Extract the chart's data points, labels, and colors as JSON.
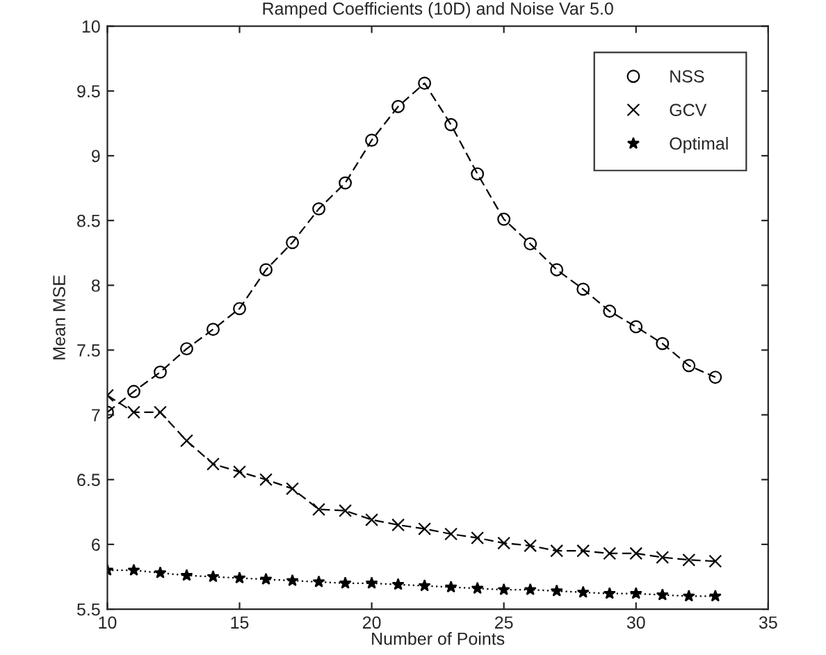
{
  "chart_data": {
    "type": "line",
    "title": "Ramped Coefficients (10D) and Noise Var 5.0",
    "xlabel": "Number of Points",
    "ylabel": "Mean MSE",
    "x": [
      10,
      11,
      12,
      13,
      14,
      15,
      16,
      17,
      18,
      19,
      20,
      21,
      22,
      23,
      24,
      25,
      26,
      27,
      28,
      29,
      30,
      31,
      32,
      33
    ],
    "series": [
      {
        "name": "NSS",
        "color": "#000000",
        "marker": "circle",
        "line_style": "dashed",
        "values": [
          7.02,
          7.18,
          7.33,
          7.51,
          7.66,
          7.82,
          8.12,
          8.33,
          8.59,
          8.79,
          9.12,
          9.38,
          9.56,
          9.24,
          8.86,
          8.51,
          8.32,
          8.12,
          7.97,
          7.8,
          7.68,
          7.55,
          7.38,
          7.29
        ]
      },
      {
        "name": "GCV",
        "color": "#000000",
        "marker": "cross",
        "line_style": "dashed",
        "values": [
          7.15,
          7.02,
          7.02,
          6.8,
          6.62,
          6.56,
          6.5,
          6.43,
          6.27,
          6.26,
          6.19,
          6.15,
          6.12,
          6.08,
          6.05,
          6.01,
          5.99,
          5.95,
          5.95,
          5.93,
          5.93,
          5.9,
          5.88,
          5.87
        ]
      },
      {
        "name": "Optimal",
        "color": "#000000",
        "marker": "star",
        "line_style": "dotted",
        "values": [
          5.8,
          5.8,
          5.78,
          5.76,
          5.75,
          5.74,
          5.73,
          5.72,
          5.71,
          5.7,
          5.7,
          5.69,
          5.68,
          5.67,
          5.66,
          5.65,
          5.65,
          5.64,
          5.63,
          5.62,
          5.62,
          5.61,
          5.6,
          5.6
        ]
      }
    ],
    "xlim": [
      10,
      35
    ],
    "xticks": [
      10,
      15,
      20,
      25,
      30,
      35
    ],
    "ylim": [
      5.5,
      10
    ],
    "yticks": [
      5.5,
      6,
      6.5,
      7,
      7.5,
      8,
      8.5,
      9,
      9.5,
      10
    ],
    "grid": false,
    "legend": "top right"
  }
}
